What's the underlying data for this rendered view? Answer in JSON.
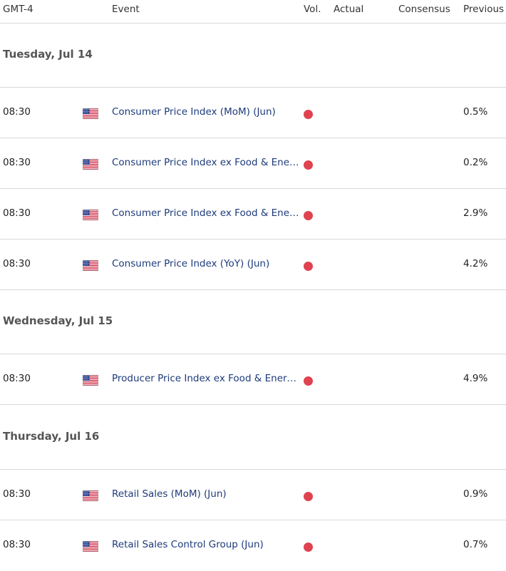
{
  "header": {
    "timezone": "GMT-4",
    "event": "Event",
    "vol": "Vol.",
    "actual": "Actual",
    "consensus": "Consensus",
    "previous": "Previous"
  },
  "colors": {
    "volatility_high": "#e0424f",
    "event_link": "#1d3a7a"
  },
  "days": [
    {
      "label": "Tuesday, Jul 14",
      "events": [
        {
          "time": "08:30",
          "country_flag": "us-flag-icon",
          "event": "Consumer Price Index (MoM) (Jun)",
          "actual": "",
          "consensus": "",
          "previous": "0.5%"
        },
        {
          "time": "08:30",
          "country_flag": "us-flag-icon",
          "event": "Consumer Price Index ex Food & Ener…",
          "actual": "",
          "consensus": "",
          "previous": "0.2%"
        },
        {
          "time": "08:30",
          "country_flag": "us-flag-icon",
          "event": "Consumer Price Index ex Food & Ener…",
          "actual": "",
          "consensus": "",
          "previous": "2.9%"
        },
        {
          "time": "08:30",
          "country_flag": "us-flag-icon",
          "event": "Consumer Price Index (YoY) (Jun)",
          "actual": "",
          "consensus": "",
          "previous": "4.2%"
        }
      ]
    },
    {
      "label": "Wednesday, Jul 15",
      "events": [
        {
          "time": "08:30",
          "country_flag": "us-flag-icon",
          "event": "Producer Price Index ex Food & Energ…",
          "actual": "",
          "consensus": "",
          "previous": "4.9%"
        }
      ]
    },
    {
      "label": "Thursday, Jul 16",
      "events": [
        {
          "time": "08:30",
          "country_flag": "us-flag-icon",
          "event": "Retail Sales (MoM) (Jun)",
          "actual": "",
          "consensus": "",
          "previous": "0.9%"
        },
        {
          "time": "08:30",
          "country_flag": "us-flag-icon",
          "event": "Retail Sales Control Group (Jun)",
          "actual": "",
          "consensus": "",
          "previous": "0.7%"
        }
      ]
    }
  ]
}
